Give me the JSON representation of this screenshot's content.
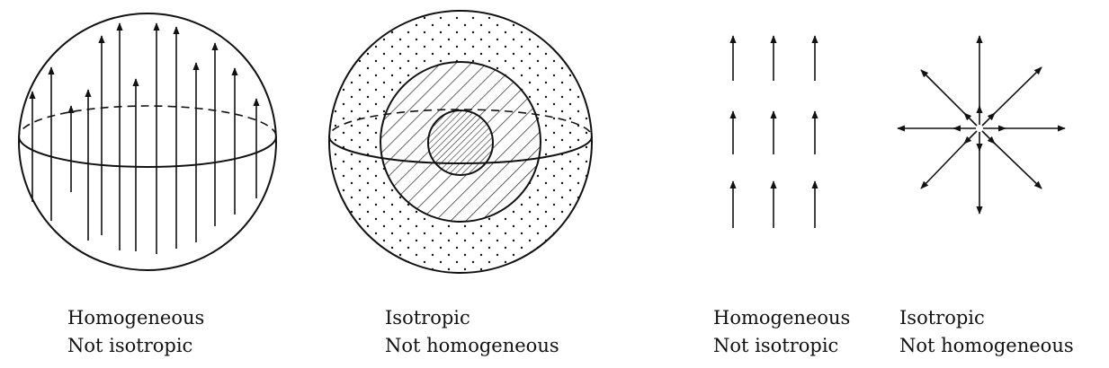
{
  "panels": [
    {
      "id": "sphere-homogeneous",
      "caption": {
        "line1": "Homogeneous",
        "line2": "Not isotropic"
      }
    },
    {
      "id": "sphere-isotropic",
      "caption": {
        "line1": "Isotropic",
        "line2": "Not homogeneous"
      }
    },
    {
      "id": "field-homogeneous",
      "caption": {
        "line1": "Homogeneous",
        "line2": "Not isotropic"
      }
    },
    {
      "id": "field-isotropic",
      "caption": {
        "line1": "Isotropic",
        "line2": "Not homogeneous"
      }
    }
  ],
  "colors": {
    "ink": "#111111",
    "background": "#ffffff"
  }
}
